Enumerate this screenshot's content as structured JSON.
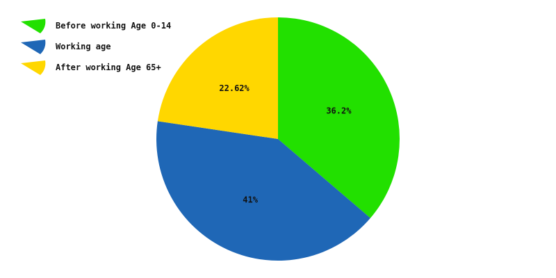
{
  "chart_data": {
    "type": "pie",
    "title": "",
    "legend_position": "top-left",
    "slices": [
      {
        "label": "Before working Age 0-14",
        "value": 36.2,
        "display": "36.2%",
        "color": "#22e000"
      },
      {
        "label": "Working age",
        "value": 41,
        "display": "41%",
        "color": "#1f67b6"
      },
      {
        "label": "After working Age 65+",
        "value": 22.62,
        "display": "22.62%",
        "color": "#ffd700"
      }
    ]
  }
}
